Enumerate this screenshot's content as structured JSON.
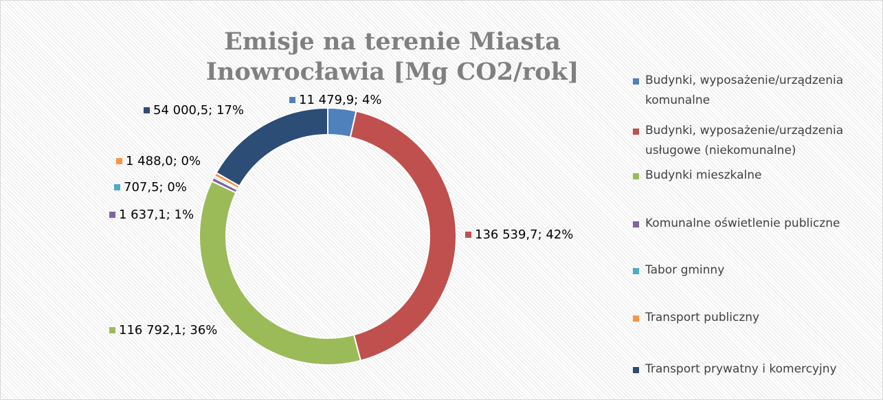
{
  "chart_data": {
    "type": "donut",
    "title": "Emisje na terenie Miasta Inowrocławia [Mg CO2/rok]",
    "categories": [
      "Budynki, wyposażenie/urządzenia komunalne",
      "Budynki, wyposażenie/urządzenia usługowe (niekomunalne)",
      "Budynki mieszkalne",
      "Komunalne oświetlenie publiczne",
      "Tabor gminny",
      "Transport publiczny",
      "Transport prywatny i komercyjny"
    ],
    "values": [
      11479.9,
      136539.7,
      116792.1,
      1637.1,
      707.5,
      1488.0,
      54000.5
    ],
    "value_labels": [
      "11 479,9; 4%",
      "136 539,7; 42%",
      "116 792,1; 36%",
      "1 637,1; 1%",
      "707,5; 0%",
      "1 488,0; 0%",
      "54 000,5; 17%"
    ],
    "colors": [
      "#4f81bd",
      "#c0504d",
      "#9bbb59",
      "#8064a2",
      "#4bacc6",
      "#f79646",
      "#2c4d75"
    ],
    "legend": "right"
  }
}
